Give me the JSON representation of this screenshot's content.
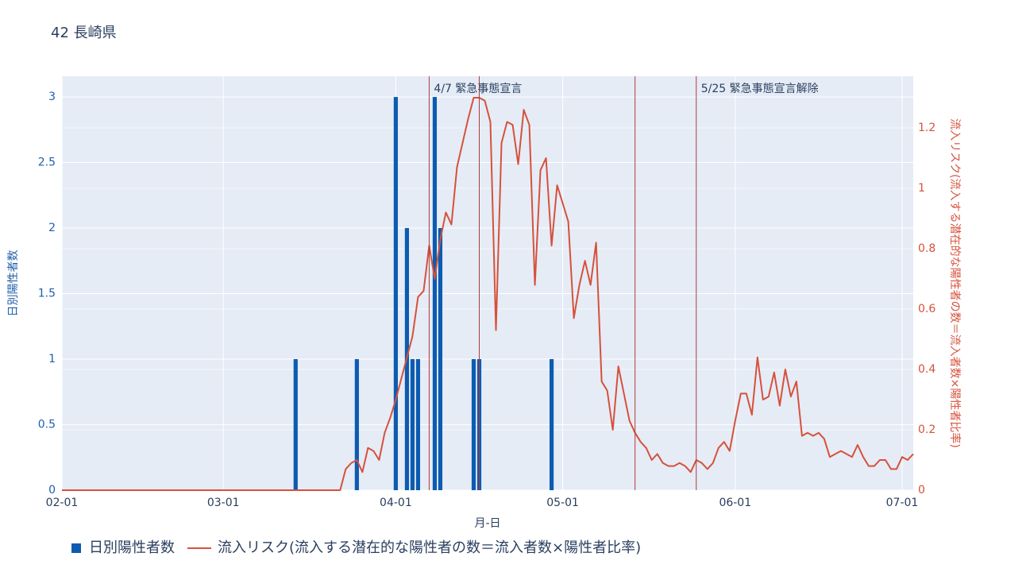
{
  "chart_data": {
    "type": "combo",
    "title": "42 長崎県",
    "x_label": "月-日",
    "y_label": "日別陽性者数",
    "y2_label": "流入リスク(流入する潜在的な陽性者の数＝流入者数×陽性者比率)",
    "x": [
      "02-01",
      "02-02",
      "02-03",
      "02-04",
      "02-05",
      "02-06",
      "02-07",
      "02-08",
      "02-09",
      "02-10",
      "02-11",
      "02-12",
      "02-13",
      "02-14",
      "02-15",
      "02-16",
      "02-17",
      "02-18",
      "02-19",
      "02-20",
      "02-21",
      "02-22",
      "02-23",
      "02-24",
      "02-25",
      "02-26",
      "02-27",
      "02-28",
      "02-29",
      "03-01",
      "03-02",
      "03-03",
      "03-04",
      "03-05",
      "03-06",
      "03-07",
      "03-08",
      "03-09",
      "03-10",
      "03-11",
      "03-12",
      "03-13",
      "03-14",
      "03-15",
      "03-16",
      "03-17",
      "03-18",
      "03-19",
      "03-20",
      "03-21",
      "03-22",
      "03-23",
      "03-24",
      "03-25",
      "03-26",
      "03-27",
      "03-28",
      "03-29",
      "03-30",
      "03-31",
      "04-01",
      "04-02",
      "04-03",
      "04-04",
      "04-05",
      "04-06",
      "04-07",
      "04-08",
      "04-09",
      "04-10",
      "04-11",
      "04-12",
      "04-13",
      "04-14",
      "04-15",
      "04-16",
      "04-17",
      "04-18",
      "04-19",
      "04-20",
      "04-21",
      "04-22",
      "04-23",
      "04-24",
      "04-25",
      "04-26",
      "04-27",
      "04-28",
      "04-29",
      "04-30",
      "05-01",
      "05-02",
      "05-03",
      "05-04",
      "05-05",
      "05-06",
      "05-07",
      "05-08",
      "05-09",
      "05-10",
      "05-11",
      "05-12",
      "05-13",
      "05-14",
      "05-15",
      "05-16",
      "05-17",
      "05-18",
      "05-19",
      "05-20",
      "05-21",
      "05-22",
      "05-23",
      "05-24",
      "05-25",
      "05-26",
      "05-27",
      "05-28",
      "05-29",
      "05-30",
      "05-31",
      "06-01",
      "06-02",
      "06-03",
      "06-04",
      "06-05",
      "06-06",
      "06-07",
      "06-08",
      "06-09",
      "06-10",
      "06-11",
      "06-12",
      "06-13",
      "06-14",
      "06-15",
      "06-16",
      "06-17",
      "06-18",
      "06-19",
      "06-20",
      "06-21",
      "06-22",
      "06-23",
      "06-24",
      "06-25",
      "06-26",
      "06-27",
      "06-28",
      "06-29",
      "06-30",
      "07-01",
      "07-02",
      "07-03"
    ],
    "series": [
      {
        "name": "日別陽性者数",
        "type": "bar",
        "color": "#0d5bb0",
        "values": [
          0,
          0,
          0,
          0,
          0,
          0,
          0,
          0,
          0,
          0,
          0,
          0,
          0,
          0,
          0,
          0,
          0,
          0,
          0,
          0,
          0,
          0,
          0,
          0,
          0,
          0,
          0,
          0,
          0,
          0,
          0,
          0,
          0,
          0,
          0,
          0,
          0,
          0,
          0,
          0,
          0,
          0,
          1,
          0,
          0,
          0,
          0,
          0,
          0,
          0,
          0,
          0,
          0,
          1,
          0,
          0,
          0,
          0,
          0,
          0,
          3,
          0,
          2,
          1,
          1,
          0,
          0,
          3,
          2,
          0,
          0,
          0,
          0,
          0,
          1,
          1,
          0,
          0,
          0,
          0,
          0,
          0,
          0,
          0,
          0,
          0,
          0,
          0,
          1,
          0,
          0,
          0,
          0,
          0,
          0,
          0,
          0,
          0,
          0,
          0,
          0,
          0,
          0,
          0,
          0,
          0,
          0,
          0,
          0,
          0,
          0,
          0,
          0,
          0,
          0,
          0,
          0,
          0,
          0,
          0,
          0,
          0,
          0,
          0,
          0,
          0,
          0,
          0,
          0,
          0,
          0,
          0,
          0,
          0,
          0,
          0,
          0,
          0,
          0,
          0,
          0,
          0,
          0,
          0,
          0,
          0,
          0,
          0,
          0,
          0,
          0,
          0,
          0,
          0
        ]
      },
      {
        "name": "流入リスク(流入する潜在的な陽性者の数＝流入者数×陽性者比率)",
        "type": "line",
        "axis": "y2",
        "color": "#d6513c",
        "values": [
          0,
          0,
          0,
          0,
          0,
          0,
          0,
          0,
          0,
          0,
          0,
          0,
          0,
          0,
          0,
          0,
          0,
          0,
          0,
          0,
          0,
          0,
          0,
          0,
          0,
          0,
          0,
          0,
          0,
          0,
          0,
          0,
          0,
          0,
          0,
          0,
          0,
          0,
          0,
          0,
          0,
          0,
          0,
          0,
          0,
          0,
          0,
          0,
          0,
          0,
          0,
          0.07,
          0.09,
          0.1,
          0.06,
          0.14,
          0.13,
          0.1,
          0.19,
          0.24,
          0.3,
          0.37,
          0.44,
          0.51,
          0.64,
          0.66,
          0.81,
          0.7,
          0.83,
          0.92,
          0.88,
          1.07,
          1.15,
          1.23,
          1.3,
          1.3,
          1.29,
          1.22,
          0.53,
          1.15,
          1.22,
          1.21,
          1.08,
          1.26,
          1.21,
          0.68,
          1.06,
          1.1,
          0.81,
          1.01,
          0.95,
          0.89,
          0.57,
          0.68,
          0.76,
          0.68,
          0.82,
          0.36,
          0.33,
          0.2,
          0.41,
          0.32,
          0.23,
          0.19,
          0.16,
          0.14,
          0.1,
          0.12,
          0.09,
          0.08,
          0.08,
          0.09,
          0.08,
          0.06,
          0.1,
          0.09,
          0.07,
          0.09,
          0.14,
          0.16,
          0.13,
          0.23,
          0.32,
          0.32,
          0.25,
          0.44,
          0.3,
          0.31,
          0.39,
          0.28,
          0.4,
          0.31,
          0.36,
          0.18,
          0.19,
          0.18,
          0.19,
          0.17,
          0.11,
          0.12,
          0.13,
          0.12,
          0.11,
          0.15,
          0.11,
          0.08,
          0.08,
          0.1,
          0.1,
          0.07,
          0.07,
          0.11,
          0.1,
          0.12
        ]
      }
    ],
    "xlim": [
      "02-01",
      "07-03"
    ],
    "xticks": [
      "02-01",
      "03-01",
      "04-01",
      "05-01",
      "06-01",
      "07-01"
    ],
    "ylim": [
      0,
      3.158
    ],
    "yticks": [
      0,
      0.5,
      1,
      1.5,
      2,
      2.5,
      3
    ],
    "y2lim": [
      0,
      1.371
    ],
    "y2ticks": [
      0,
      0.2,
      0.4,
      0.6,
      0.8,
      1,
      1.2
    ],
    "vlines": [
      "04-07",
      "04-16",
      "05-14",
      "05-25"
    ],
    "vline_color": "#b03a3a",
    "annotations": [
      {
        "x": "04-07",
        "text": "4/7 緊急事態宣言"
      },
      {
        "x": "05-25",
        "text": "5/25 緊急事態宣言解除"
      }
    ],
    "grid": true,
    "legend": "bottom"
  }
}
